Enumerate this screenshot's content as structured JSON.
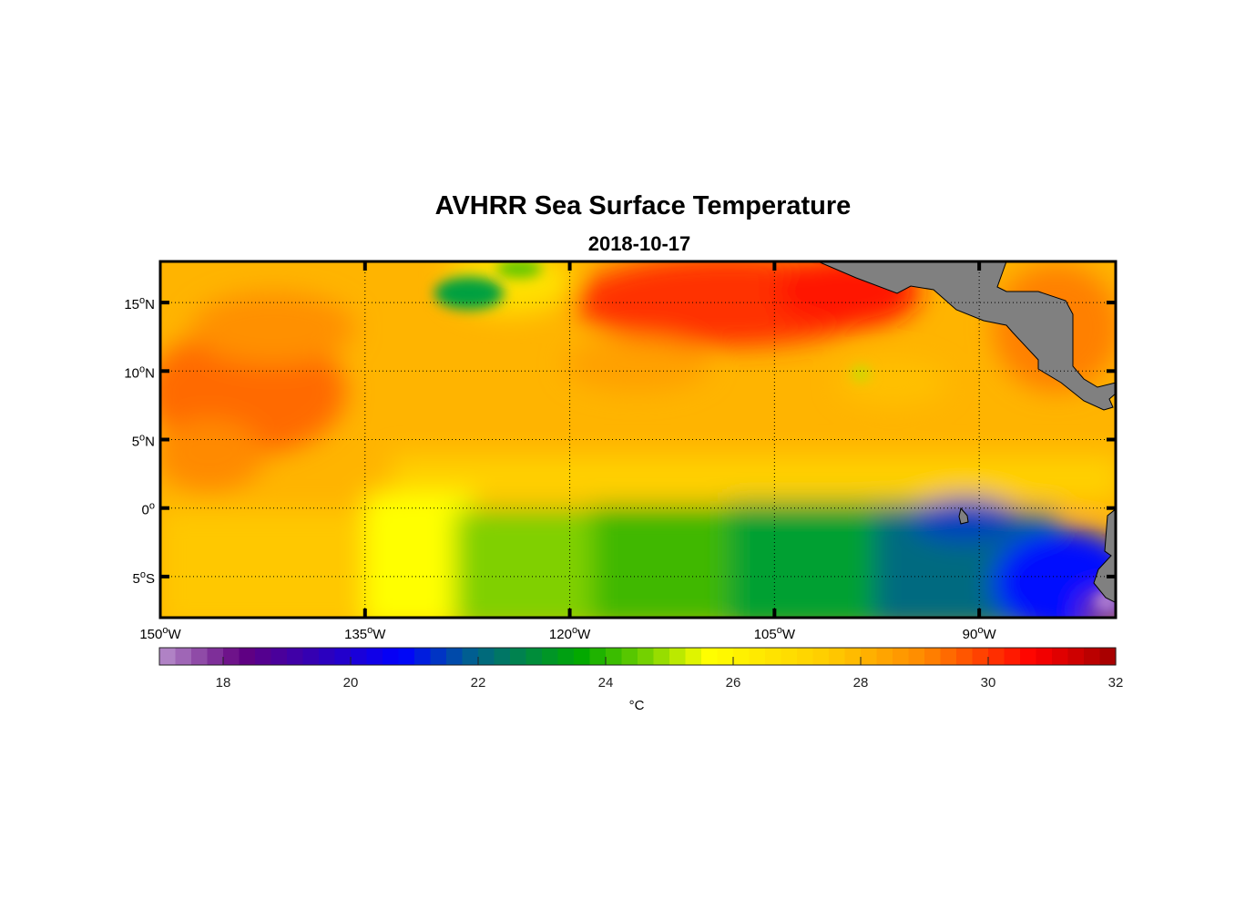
{
  "chart_data": {
    "type": "heatmap",
    "title": "AVHRR Sea Surface Temperature",
    "subtitle": "2018-10-17",
    "lon_range": [
      -150,
      -80
    ],
    "lat_range": [
      -8,
      18
    ],
    "x_ticks": [
      {
        "value": -150,
        "label": "150°W"
      },
      {
        "value": -135,
        "label": "135°W"
      },
      {
        "value": -120,
        "label": "120°W"
      },
      {
        "value": -105,
        "label": "105°W"
      },
      {
        "value": -90,
        "label": "90°W"
      }
    ],
    "y_ticks": [
      {
        "value": 15,
        "label": "15°N"
      },
      {
        "value": 10,
        "label": "10°N"
      },
      {
        "value": 5,
        "label": "5°N"
      },
      {
        "value": 0,
        "label": "0°"
      },
      {
        "value": -5,
        "label": "5°S"
      }
    ],
    "grid": true,
    "colorbar": {
      "range": [
        17,
        32
      ],
      "ticks": [
        18,
        20,
        22,
        24,
        26,
        28,
        30,
        32
      ],
      "label": "°C",
      "placement": "bottom"
    },
    "colors": {
      "land": "#808080",
      "colormap": [
        [
          17,
          "#b890cc"
        ],
        [
          18.3,
          "#620080"
        ],
        [
          19.5,
          "#3000b8"
        ],
        [
          20.8,
          "#0000ff"
        ],
        [
          21.8,
          "#005a98"
        ],
        [
          22.8,
          "#008a40"
        ],
        [
          23.6,
          "#00a800"
        ],
        [
          24.6,
          "#70d000"
        ],
        [
          25.6,
          "#ffff00"
        ],
        [
          27.5,
          "#ffcc00"
        ],
        [
          29,
          "#ff8800"
        ],
        [
          30.7,
          "#ff0000"
        ],
        [
          32,
          "#a00000"
        ]
      ]
    },
    "regions_summary": [
      {
        "area": "equatorial cold tongue east of 105°W",
        "value": 21.5
      },
      {
        "area": "near 82°W 7°S",
        "value": 18
      }
    ]
  }
}
